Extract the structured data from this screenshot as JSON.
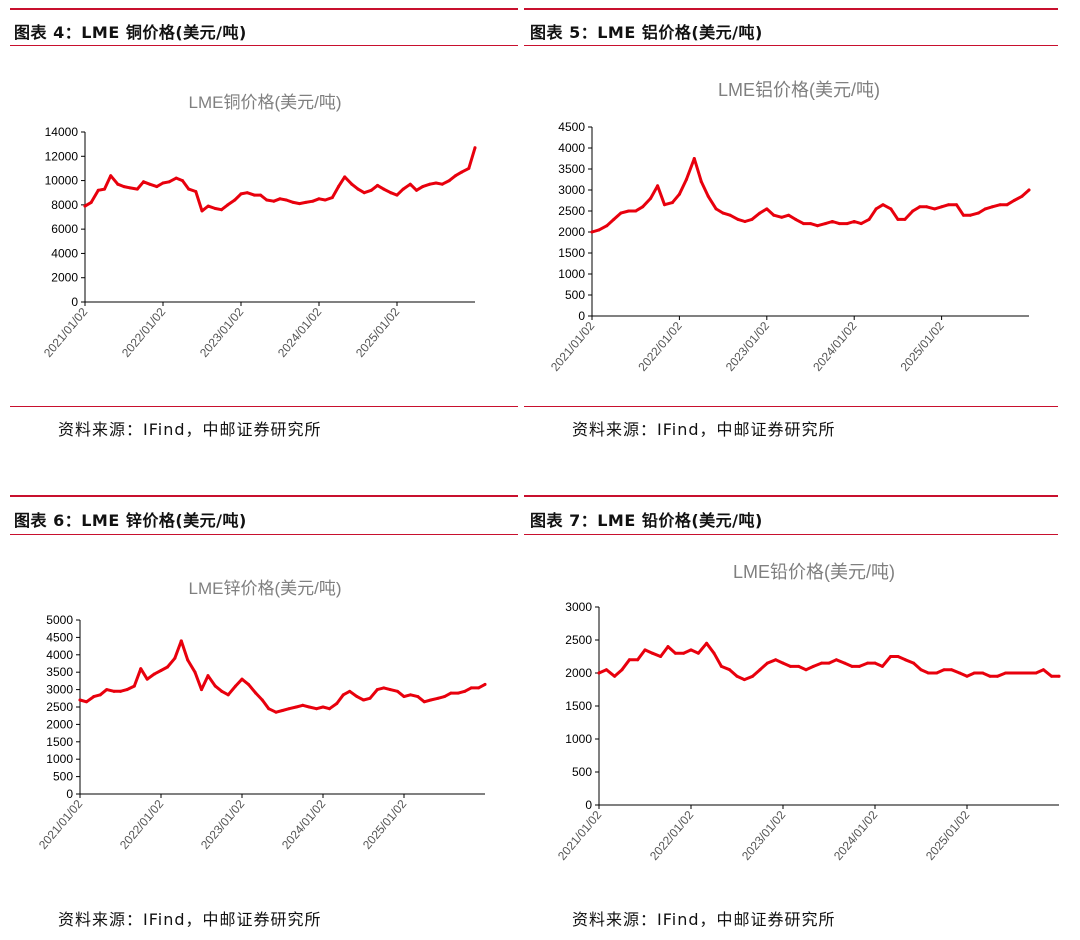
{
  "panels": [
    {
      "title": "图表 4：LME 铜价格(美元/吨)",
      "source": "资料来源：IFind，中邮证券研究所"
    },
    {
      "title": "图表 5：LME 铝价格(美元/吨)",
      "source": "资料来源：IFind，中邮证券研究所"
    },
    {
      "title": "图表 6：LME 锌价格(美元/吨)",
      "source": "资料来源：IFind，中邮证券研究所"
    },
    {
      "title": "图表 7：LME 铅价格(美元/吨)",
      "source": "资料来源：IFind，中邮证券研究所"
    }
  ],
  "colors": {
    "line": "#e8000d",
    "rule": "#c8102e",
    "axis": "#000000",
    "chart_title": "#7f7f7f"
  },
  "chart_data": [
    {
      "type": "line",
      "title": "LME铜价格(美元/吨)",
      "ylim": [
        0,
        14000
      ],
      "yticks": [
        0,
        2000,
        4000,
        6000,
        8000,
        10000,
        12000,
        14000
      ],
      "xlim": [
        2021.0,
        2026.0
      ],
      "xticks": [
        "2021/01/02",
        "2022/01/02",
        "2023/01/02",
        "2024/01/02",
        "2025/01/02"
      ],
      "x": [
        2021.0,
        2021.08,
        2021.17,
        2021.25,
        2021.33,
        2021.42,
        2021.5,
        2021.58,
        2021.67,
        2021.75,
        2021.83,
        2021.92,
        2022.0,
        2022.08,
        2022.17,
        2022.25,
        2022.33,
        2022.42,
        2022.5,
        2022.58,
        2022.67,
        2022.75,
        2022.83,
        2022.92,
        2023.0,
        2023.08,
        2023.17,
        2023.25,
        2023.33,
        2023.42,
        2023.5,
        2023.58,
        2023.67,
        2023.75,
        2023.83,
        2023.92,
        2024.0,
        2024.08,
        2024.17,
        2024.25,
        2024.33,
        2024.42,
        2024.5,
        2024.58,
        2024.67,
        2024.75,
        2024.83,
        2024.92,
        2025.0,
        2025.08,
        2025.17,
        2025.25,
        2025.33,
        2025.42,
        2025.5,
        2025.58,
        2025.67,
        2025.75,
        2025.83,
        2025.92,
        2026.0
      ],
      "y": [
        7900,
        8200,
        9200,
        9300,
        10400,
        9700,
        9500,
        9400,
        9300,
        9900,
        9700,
        9500,
        9800,
        9900,
        10200,
        10000,
        9300,
        9100,
        7500,
        7900,
        7700,
        7600,
        8000,
        8400,
        8900,
        9000,
        8800,
        8800,
        8400,
        8300,
        8500,
        8400,
        8200,
        8100,
        8200,
        8300,
        8500,
        8400,
        8600,
        9500,
        10300,
        9700,
        9300,
        9000,
        9200,
        9600,
        9300,
        9000,
        8800,
        9300,
        9700,
        9200,
        9500,
        9700,
        9800,
        9700,
        10000,
        10400,
        10700,
        11000,
        12700
      ]
    },
    {
      "type": "line",
      "title": "LME铝价格(美元/吨)",
      "ylim": [
        0,
        4500
      ],
      "yticks": [
        0,
        500,
        1000,
        1500,
        2000,
        2500,
        3000,
        3500,
        4000,
        4500
      ],
      "xlim": [
        2021.0,
        2026.0
      ],
      "xticks": [
        "2021/01/02",
        "2022/01/02",
        "2023/01/02",
        "2024/01/02",
        "2025/01/02"
      ],
      "x": [
        2021.0,
        2021.08,
        2021.17,
        2021.25,
        2021.33,
        2021.42,
        2021.5,
        2021.58,
        2021.67,
        2021.75,
        2021.83,
        2021.92,
        2022.0,
        2022.08,
        2022.17,
        2022.25,
        2022.33,
        2022.42,
        2022.5,
        2022.58,
        2022.67,
        2022.75,
        2022.83,
        2022.92,
        2023.0,
        2023.08,
        2023.17,
        2023.25,
        2023.33,
        2023.42,
        2023.5,
        2023.58,
        2023.67,
        2023.75,
        2023.83,
        2023.92,
        2024.0,
        2024.08,
        2024.17,
        2024.25,
        2024.33,
        2024.42,
        2024.5,
        2024.58,
        2024.67,
        2024.75,
        2024.83,
        2024.92,
        2025.0,
        2025.08,
        2025.17,
        2025.25,
        2025.33,
        2025.42,
        2025.5,
        2025.58,
        2025.67,
        2025.75,
        2025.83,
        2025.92,
        2026.0
      ],
      "y": [
        2000,
        2050,
        2150,
        2300,
        2450,
        2500,
        2500,
        2600,
        2800,
        3100,
        2650,
        2700,
        2900,
        3250,
        3750,
        3200,
        2850,
        2550,
        2450,
        2400,
        2300,
        2250,
        2300,
        2450,
        2550,
        2400,
        2350,
        2400,
        2300,
        2200,
        2200,
        2150,
        2200,
        2250,
        2200,
        2200,
        2250,
        2200,
        2300,
        2550,
        2650,
        2550,
        2300,
        2300,
        2500,
        2600,
        2600,
        2550,
        2600,
        2650,
        2650,
        2400,
        2400,
        2450,
        2550,
        2600,
        2650,
        2650,
        2750,
        2850,
        3000
      ]
    },
    {
      "type": "line",
      "title": "LME锌价格(美元/吨)",
      "ylim": [
        0,
        5000
      ],
      "yticks": [
        0,
        500,
        1000,
        1500,
        2000,
        2500,
        3000,
        3500,
        4000,
        4500,
        5000
      ],
      "xlim": [
        2021.0,
        2026.0
      ],
      "xticks": [
        "2021/01/02",
        "2022/01/02",
        "2023/01/02",
        "2024/01/02",
        "2025/01/02"
      ],
      "x": [
        2021.0,
        2021.08,
        2021.17,
        2021.25,
        2021.33,
        2021.42,
        2021.5,
        2021.58,
        2021.67,
        2021.75,
        2021.83,
        2021.92,
        2022.0,
        2022.08,
        2022.17,
        2022.25,
        2022.33,
        2022.42,
        2022.5,
        2022.58,
        2022.67,
        2022.75,
        2022.83,
        2022.92,
        2023.0,
        2023.08,
        2023.17,
        2023.25,
        2023.33,
        2023.42,
        2023.5,
        2023.58,
        2023.67,
        2023.75,
        2023.83,
        2023.92,
        2024.0,
        2024.08,
        2024.17,
        2024.25,
        2024.33,
        2024.42,
        2024.5,
        2024.58,
        2024.67,
        2024.75,
        2024.83,
        2024.92,
        2025.0,
        2025.08,
        2025.17,
        2025.25,
        2025.33,
        2025.42,
        2025.5,
        2025.58,
        2025.67,
        2025.75,
        2025.83,
        2025.92,
        2026.0
      ],
      "y": [
        2700,
        2650,
        2800,
        2850,
        3000,
        2950,
        2950,
        3000,
        3100,
        3600,
        3300,
        3450,
        3550,
        3650,
        3900,
        4400,
        3850,
        3500,
        3000,
        3400,
        3100,
        2950,
        2850,
        3100,
        3300,
        3150,
        2900,
        2700,
        2450,
        2350,
        2400,
        2450,
        2500,
        2550,
        2500,
        2450,
        2500,
        2450,
        2600,
        2850,
        2950,
        2800,
        2700,
        2750,
        3000,
        3050,
        3000,
        2950,
        2800,
        2850,
        2800,
        2650,
        2700,
        2750,
        2800,
        2900,
        2900,
        2950,
        3050,
        3050,
        3150
      ]
    },
    {
      "type": "line",
      "title": "LME铅价格(美元/吨)",
      "ylim": [
        0,
        3000
      ],
      "yticks": [
        0,
        500,
        1000,
        1500,
        2000,
        2500,
        3000
      ],
      "xlim": [
        2021.0,
        2026.0
      ],
      "xticks": [
        "2021/01/02",
        "2022/01/02",
        "2023/01/02",
        "2024/01/02",
        "2025/01/02"
      ],
      "x": [
        2021.0,
        2021.08,
        2021.17,
        2021.25,
        2021.33,
        2021.42,
        2021.5,
        2021.58,
        2021.67,
        2021.75,
        2021.83,
        2021.92,
        2022.0,
        2022.08,
        2022.17,
        2022.25,
        2022.33,
        2022.42,
        2022.5,
        2022.58,
        2022.67,
        2022.75,
        2022.83,
        2022.92,
        2023.0,
        2023.08,
        2023.17,
        2023.25,
        2023.33,
        2023.42,
        2023.5,
        2023.58,
        2023.67,
        2023.75,
        2023.83,
        2023.92,
        2024.0,
        2024.08,
        2024.17,
        2024.25,
        2024.33,
        2024.42,
        2024.5,
        2024.58,
        2024.67,
        2024.75,
        2024.83,
        2024.92,
        2025.0,
        2025.08,
        2025.17,
        2025.25,
        2025.33,
        2025.42,
        2025.5,
        2025.58,
        2025.67,
        2025.75,
        2025.83,
        2025.92,
        2026.0
      ],
      "y": [
        2000,
        2050,
        1950,
        2050,
        2200,
        2200,
        2350,
        2300,
        2250,
        2400,
        2300,
        2300,
        2350,
        2300,
        2450,
        2300,
        2100,
        2050,
        1950,
        1900,
        1950,
        2050,
        2150,
        2200,
        2150,
        2100,
        2100,
        2050,
        2100,
        2150,
        2150,
        2200,
        2150,
        2100,
        2100,
        2150,
        2150,
        2100,
        2250,
        2250,
        2200,
        2150,
        2050,
        2000,
        2000,
        2050,
        2050,
        2000,
        1950,
        2000,
        2000,
        1950,
        1950,
        2000,
        2000,
        2000,
        2000,
        2000,
        2050,
        1950,
        1950
      ]
    }
  ]
}
